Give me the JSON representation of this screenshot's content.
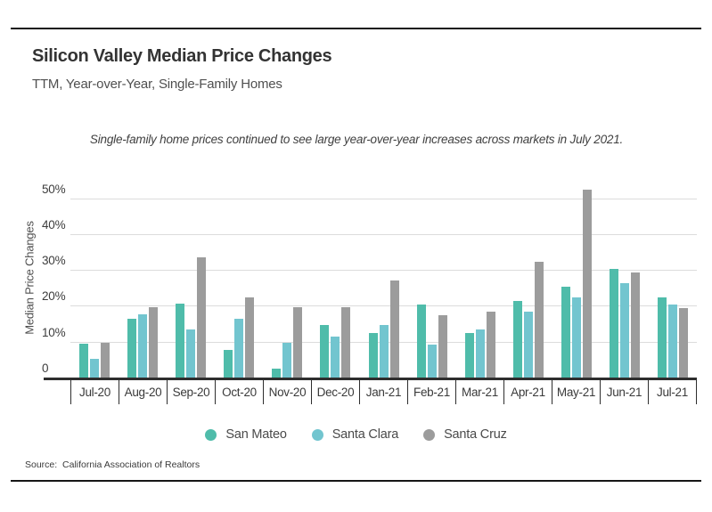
{
  "header": {
    "title": "Silicon Valley Median Price Changes",
    "subtitle": "TTM, Year-over-Year, Single-Family Homes",
    "annotation": "Single-family home prices continued to see large year-over-year increases across markets in July 2021."
  },
  "footer": {
    "source": "Source:  California Association of Realtors"
  },
  "colors": {
    "san_mateo": "#4FBCAA",
    "santa_clara": "#72C5CF",
    "santa_cruz": "#9C9C9C",
    "gridline": "#DCDCDC",
    "axis": "#2E2E2E"
  },
  "chart_data": {
    "type": "bar",
    "title": "Silicon Valley Median Price Changes",
    "subtitle": "TTM, Year-over-Year, Single-Family Homes",
    "xlabel": "",
    "ylabel": "Median Price Changes",
    "ylim": [
      0,
      55
    ],
    "yticks": [
      0,
      10,
      20,
      30,
      40,
      50
    ],
    "ytick_labels": [
      "0",
      "10%",
      "20%",
      "30%",
      "40%",
      "50%"
    ],
    "grid": "horizontal",
    "legend_position": "bottom",
    "unit": "percent",
    "categories": [
      "Jul-20",
      "Aug-20",
      "Sep-20",
      "Oct-20",
      "Nov-20",
      "Dec-20",
      "Jan-21",
      "Feb-21",
      "Mar-21",
      "Apr-21",
      "May-21",
      "Jun-21",
      "Jul-21"
    ],
    "series": [
      {
        "name": "San Mateo",
        "color": "#4FBCAA",
        "values": [
          9.7,
          16.7,
          20.8,
          7.9,
          2.7,
          15.0,
          12.7,
          20.6,
          12.7,
          21.5,
          25.6,
          30.6,
          22.7
        ]
      },
      {
        "name": "Santa Clara",
        "color": "#72C5CF",
        "values": [
          5.5,
          17.8,
          13.6,
          16.7,
          9.9,
          11.8,
          14.9,
          9.5,
          13.7,
          18.6,
          22.7,
          26.5,
          20.7
        ]
      },
      {
        "name": "Santa Cruz",
        "color": "#9C9C9C",
        "values": [
          9.9,
          19.9,
          33.7,
          22.7,
          19.9,
          19.9,
          27.4,
          17.7,
          18.7,
          32.6,
          52.6,
          29.6,
          19.6
        ]
      }
    ]
  }
}
